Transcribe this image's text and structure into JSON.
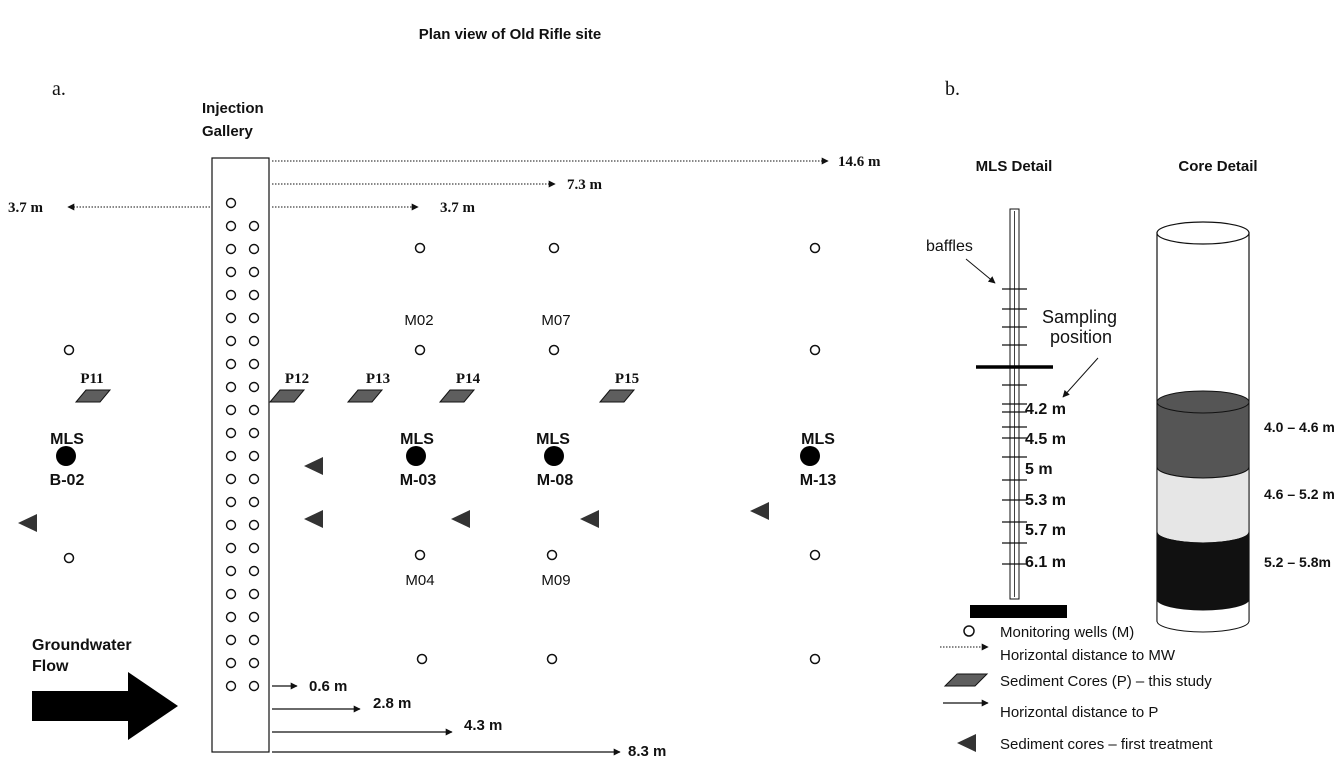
{
  "title": "Plan view of Old Rifle site",
  "panel_a": {
    "label": "a.",
    "gallery_label": [
      "Injection",
      "Gallery"
    ],
    "mw_distances": [
      "14.6 m",
      "7.3 m",
      "3.7 m",
      "3.7 m"
    ],
    "p_distances": [
      "0.6 m",
      "2.8 m",
      "4.3 m",
      "8.3 m"
    ],
    "wells": [
      "M02",
      "M07",
      "M04",
      "M09"
    ],
    "cores": [
      "P11",
      "P12",
      "P13",
      "P14",
      "P15"
    ],
    "mls_word": "MLS",
    "mls_ids": [
      "B-02",
      "M-03",
      "M-08",
      "M-13"
    ],
    "flow_label": [
      "Groundwater",
      "Flow"
    ]
  },
  "panel_b": {
    "label": "b.",
    "mls_detail_title": "MLS Detail",
    "core_detail_title": "Core Detail",
    "baffles": "baffles",
    "sampling_position": [
      "Sampling",
      "position"
    ],
    "depths": [
      "4.2 m",
      "4.5 m",
      "5 m",
      "5.3 m",
      "5.7 m",
      "6.1 m"
    ],
    "core_ranges": [
      "4.0 – 4.6 m",
      "4.6 – 5.2 m",
      "5.2 – 5.8m"
    ],
    "core_colors": [
      "#555555",
      "#e6e6e6",
      "#111111"
    ]
  },
  "legend": [
    "Monitoring wells (M)",
    "Horizontal distance to MW",
    "Sediment Cores (P) – this study",
    "Horizontal distance to P",
    "Sediment cores – first treatment"
  ]
}
